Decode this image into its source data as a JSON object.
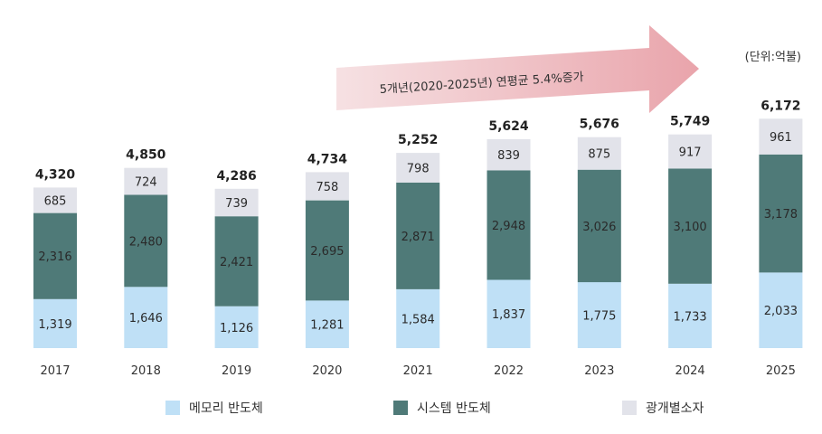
{
  "banner": {
    "text": "5개년(2020-2025년) 연평균 5.4%증가"
  },
  "unit_label": "(단위:억불)",
  "colors": {
    "memory": "#bfe0f6",
    "system": "#4f7a78",
    "discrete": "#e2e3ea",
    "arrow_start": "#f6e1e3",
    "arrow_end": "#e9a4ab"
  },
  "legend": {
    "memory": "메모리 반도체",
    "system": "시스템 반도체",
    "discrete": "광개별소자"
  },
  "chart_data": {
    "type": "bar",
    "stacked": true,
    "title": "",
    "xlabel": "",
    "ylabel": "",
    "categories": [
      "2017",
      "2018",
      "2019",
      "2020",
      "2021",
      "2022",
      "2023",
      "2024",
      "2025"
    ],
    "series": [
      {
        "name": "메모리 반도체",
        "key": "memory",
        "values": [
          1319,
          1646,
          1126,
          1281,
          1584,
          1837,
          1775,
          1733,
          2033
        ]
      },
      {
        "name": "시스템 반도체",
        "key": "system",
        "values": [
          2316,
          2480,
          2421,
          2695,
          2871,
          2948,
          3026,
          3100,
          3178
        ]
      },
      {
        "name": "광개별소자",
        "key": "discrete",
        "values": [
          685,
          724,
          739,
          758,
          798,
          839,
          875,
          917,
          961
        ]
      }
    ],
    "totals": [
      4320,
      4850,
      4286,
      4734,
      5252,
      5624,
      5676,
      5749,
      6172
    ],
    "legend_position": "bottom",
    "grid": false
  }
}
